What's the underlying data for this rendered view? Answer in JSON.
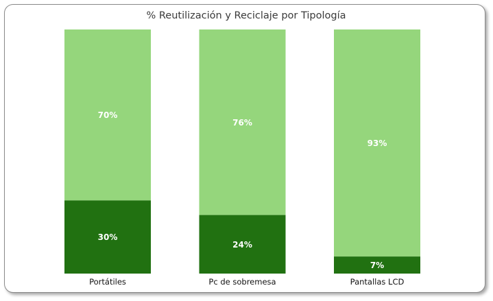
{
  "chart_data": {
    "type": "bar",
    "stacked": "percent",
    "title": "% Reutilización y Reciclaje por Tipología",
    "categories": [
      "Portátiles",
      "Pc de sobremesa",
      "Pantallas LCD"
    ],
    "series": [
      {
        "values": [
          30,
          24,
          7
        ],
        "color": "#217111"
      },
      {
        "values": [
          70,
          76,
          93
        ],
        "color": "#95d67c"
      }
    ],
    "value_labels": [
      [
        "30%",
        "24%",
        "7%"
      ],
      [
        "70%",
        "76%",
        "93%"
      ]
    ],
    "ylim": [
      0,
      100
    ],
    "grid": false,
    "legend": "none"
  }
}
